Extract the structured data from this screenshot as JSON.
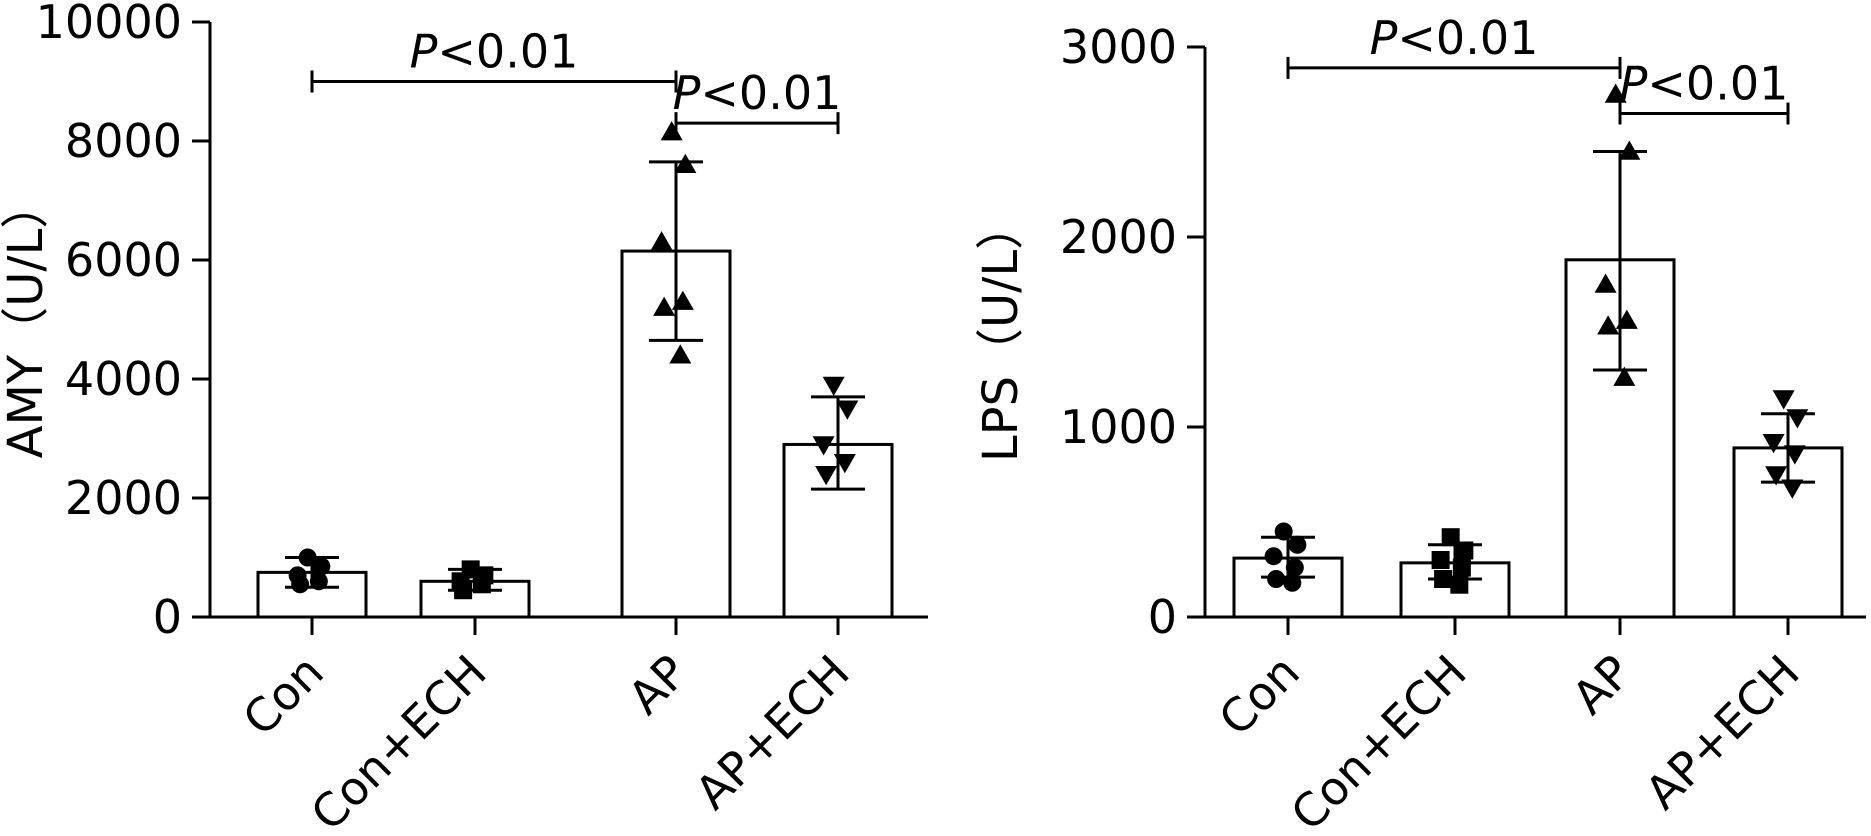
{
  "chart_data": [
    {
      "type": "bar",
      "title": "",
      "xlabel": "",
      "ylabel": "AMY（U/L）",
      "ylim": [
        0,
        10000
      ],
      "yticks": [
        0,
        2000,
        4000,
        6000,
        8000,
        10000
      ],
      "categories": [
        "Con",
        "Con+ECH",
        "AP",
        "AP+ECH"
      ],
      "values": [
        750,
        600,
        6150,
        2900
      ],
      "error_upper": [
        1000,
        800,
        7650,
        3700
      ],
      "error_lower": [
        500,
        450,
        4650,
        2150
      ],
      "markers": [
        "circle",
        "square",
        "triangle-up",
        "triangle-down"
      ],
      "points": [
        [
          1000,
          850,
          700,
          600,
          550
        ],
        [
          800,
          700,
          600,
          550,
          450
        ],
        [
          8150,
          7600,
          6300,
          5300,
          5200,
          4400
        ],
        [
          3900,
          3500,
          2900,
          2600,
          2400
        ]
      ],
      "annotations": [
        {
          "from": 0,
          "to": 2,
          "y": 9000,
          "text_prefix": "P",
          "text": "<0.01"
        },
        {
          "from": 2,
          "to": 3,
          "y": 8300,
          "text_prefix": "P",
          "text": "<0.01"
        }
      ]
    },
    {
      "type": "bar",
      "title": "",
      "xlabel": "",
      "ylabel": "LPS（U/L）",
      "ylim": [
        0,
        3000
      ],
      "yticks": [
        0,
        1000,
        2000,
        3000
      ],
      "categories": [
        "Con",
        "Con+ECH",
        "AP",
        "AP+ECH"
      ],
      "values": [
        310,
        285,
        1880,
        890
      ],
      "error_upper": [
        420,
        380,
        2450,
        1070
      ],
      "error_lower": [
        210,
        200,
        1300,
        710
      ],
      "markers": [
        "circle",
        "square",
        "triangle-up",
        "triangle-down"
      ],
      "points": [
        [
          450,
          380,
          320,
          260,
          200,
          180
        ],
        [
          420,
          350,
          300,
          260,
          200,
          170
        ],
        [
          2750,
          2450,
          1750,
          1560,
          1530,
          1260
        ],
        [
          1150,
          1050,
          920,
          860,
          750,
          680
        ]
      ],
      "annotations": [
        {
          "from": 0,
          "to": 2,
          "y": 2890,
          "text_prefix": "P",
          "text": "<0.01"
        },
        {
          "from": 2,
          "to": 3,
          "y": 2650,
          "text_prefix": "P",
          "text": "<0.01"
        }
      ]
    }
  ]
}
